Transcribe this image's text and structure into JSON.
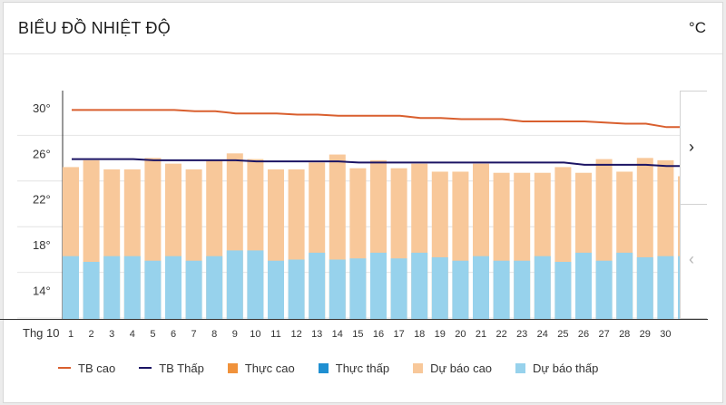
{
  "header": {
    "title": "BIỂU ĐỒ NHIỆT ĐỘ",
    "unit": "°C"
  },
  "nav": {
    "next_icon": "chevron-right-icon",
    "prev_icon": "chevron-left-icon"
  },
  "colors": {
    "tb_cao": "#d95f2e",
    "tb_thap": "#1b1464",
    "thuc_cao": "#f0923b",
    "thuc_thap": "#1f8fd1",
    "du_bao_cao": "#f8c89a",
    "du_bao_thap": "#97d2ec"
  },
  "legend": [
    {
      "label": "TB cao",
      "kind": "line",
      "color": "#d95f2e"
    },
    {
      "label": "TB Thấp",
      "kind": "line",
      "color": "#1b1464"
    },
    {
      "label": "Thực cao",
      "kind": "box",
      "color": "#f0923b"
    },
    {
      "label": "Thực thấp",
      "kind": "box",
      "color": "#1f8fd1"
    },
    {
      "label": "Dự báo cao",
      "kind": "box",
      "color": "#f8c89a"
    },
    {
      "label": "Dự báo thấp",
      "kind": "box",
      "color": "#97d2ec"
    }
  ],
  "chart_data": {
    "type": "bar",
    "x_prefix_label": "Thg 10",
    "categories": [
      "1",
      "2",
      "3",
      "4",
      "5",
      "6",
      "7",
      "8",
      "9",
      "10",
      "11",
      "12",
      "13",
      "14",
      "15",
      "16",
      "17",
      "18",
      "19",
      "20",
      "21",
      "22",
      "23",
      "24",
      "25",
      "26",
      "27",
      "28",
      "29",
      "30",
      ""
    ],
    "y_ticks": [
      14,
      18,
      22,
      26,
      30
    ],
    "y_tick_labels": [
      "14°",
      "18°",
      "22°",
      "26°",
      "30°"
    ],
    "ylim": [
      11.5,
      31.5
    ],
    "grid": true,
    "series": [
      {
        "name": "Dự báo cao",
        "type": "bar",
        "values": [
          24.8,
          25.4,
          24.6,
          24.6,
          25.6,
          25.1,
          24.6,
          25.4,
          26.0,
          25.5,
          24.6,
          24.6,
          25.2,
          25.9,
          24.7,
          25.4,
          24.7,
          25.1,
          24.4,
          24.4,
          25.1,
          24.3,
          24.3,
          24.3,
          24.8,
          24.3,
          25.5,
          24.4,
          25.6,
          25.4,
          24.0
        ]
      },
      {
        "name": "Dự báo thấp",
        "type": "bar",
        "values": [
          17.0,
          16.5,
          17.0,
          17.0,
          16.6,
          17.0,
          16.6,
          17.0,
          17.5,
          17.5,
          16.6,
          16.7,
          17.3,
          16.7,
          16.8,
          17.3,
          16.8,
          17.3,
          16.9,
          16.6,
          17.0,
          16.6,
          16.6,
          17.0,
          16.5,
          17.3,
          16.6,
          17.3,
          16.9,
          17.0,
          17.0
        ]
      },
      {
        "name": "TB cao",
        "type": "line",
        "values": [
          29.8,
          29.8,
          29.8,
          29.8,
          29.8,
          29.8,
          29.7,
          29.7,
          29.5,
          29.5,
          29.5,
          29.4,
          29.4,
          29.3,
          29.3,
          29.3,
          29.3,
          29.1,
          29.1,
          29.0,
          29.0,
          29.0,
          28.8,
          28.8,
          28.8,
          28.8,
          28.7,
          28.6,
          28.6,
          28.3,
          28.3
        ]
      },
      {
        "name": "TB Thấp",
        "type": "line",
        "values": [
          25.5,
          25.5,
          25.5,
          25.5,
          25.4,
          25.4,
          25.4,
          25.4,
          25.4,
          25.3,
          25.3,
          25.3,
          25.3,
          25.3,
          25.2,
          25.2,
          25.2,
          25.2,
          25.2,
          25.2,
          25.2,
          25.2,
          25.2,
          25.2,
          25.2,
          25.0,
          25.0,
          25.0,
          25.0,
          24.9,
          24.9
        ]
      }
    ]
  }
}
